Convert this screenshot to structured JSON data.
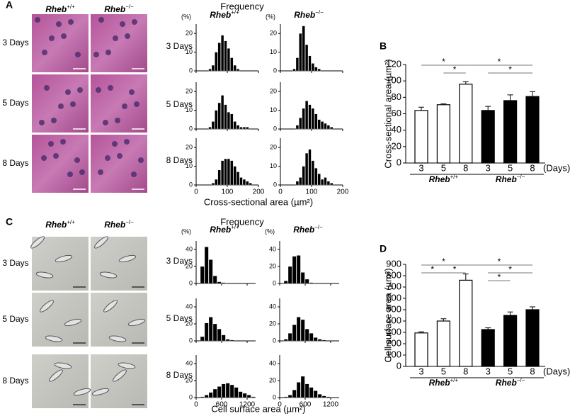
{
  "panel_labels": [
    "A",
    "B",
    "C",
    "D"
  ],
  "micrographs": [
    {
      "columns": [
        {
          "gene": "Rheb",
          "genotype": "+/+"
        },
        {
          "gene": "Rheb",
          "genotype": "−/−"
        }
      ],
      "rows": [
        "3 Days",
        "5 Days",
        "8 Days"
      ]
    },
    {
      "columns": [
        {
          "gene": "Rheb",
          "genotype": "+/+"
        },
        {
          "gene": "Rheb",
          "genotype": "−/−"
        }
      ],
      "rows": [
        "3 Days",
        "5 Days",
        "8 Days"
      ]
    }
  ],
  "chart_data": [
    {
      "type": "histogram",
      "title": "Frequency",
      "ylabel": "(%)",
      "xlabel": "Cross-sectional area (µm²)",
      "color": "#000000",
      "columns": [
        {
          "gene": "Rheb",
          "genotype": "+/+"
        },
        {
          "gene": "Rheb",
          "genotype": "−/−"
        }
      ],
      "rows": [
        "3 Days",
        "5 Days",
        "8 Days"
      ],
      "xlim": [
        0,
        200
      ],
      "xticks": [
        0,
        100,
        200
      ],
      "panels": [
        {
          "bins": [
            0,
            10,
            20,
            30,
            40,
            50,
            60,
            70,
            80,
            90,
            100,
            110,
            120,
            130,
            140,
            150,
            160,
            170,
            180,
            190,
            200
          ],
          "values": [
            0,
            0,
            0,
            0,
            1,
            3,
            10,
            15,
            19,
            16,
            12,
            7,
            3,
            1,
            0,
            0,
            0,
            0,
            0,
            0
          ],
          "ylim": [
            0,
            25
          ],
          "yticks": [
            0,
            10,
            20
          ]
        },
        {
          "bins": [
            0,
            10,
            20,
            30,
            40,
            50,
            60,
            70,
            80,
            90,
            100,
            110,
            120,
            130,
            140,
            150,
            160,
            170,
            180,
            190,
            200
          ],
          "values": [
            0,
            0,
            0,
            0,
            1,
            7,
            20,
            24,
            14,
            8,
            4,
            2,
            1,
            0,
            0,
            0,
            0,
            0,
            0,
            0
          ],
          "ylim": [
            0,
            25
          ],
          "yticks": [
            0,
            10,
            20
          ]
        },
        {
          "bins": [
            0,
            10,
            20,
            30,
            40,
            50,
            60,
            70,
            80,
            90,
            100,
            110,
            120,
            130,
            140,
            150,
            160,
            170,
            180,
            190,
            200
          ],
          "values": [
            0,
            0,
            0,
            0,
            1,
            4,
            10,
            14,
            18,
            13,
            9,
            8,
            4,
            2,
            1,
            1,
            1,
            0,
            0,
            0
          ],
          "ylim": [
            0,
            25
          ],
          "yticks": [
            0,
            10,
            20
          ]
        },
        {
          "bins": [
            0,
            10,
            20,
            30,
            40,
            50,
            60,
            70,
            80,
            90,
            100,
            110,
            120,
            130,
            140,
            150,
            160,
            170,
            180,
            190,
            200
          ],
          "values": [
            0,
            0,
            0,
            0,
            0,
            2,
            6,
            11,
            15,
            13,
            11,
            8,
            5,
            4,
            3,
            2,
            1,
            0,
            0,
            0
          ],
          "ylim": [
            0,
            25
          ],
          "yticks": [
            0,
            10,
            20
          ]
        },
        {
          "bins": [
            0,
            10,
            20,
            30,
            40,
            50,
            60,
            70,
            80,
            90,
            100,
            110,
            120,
            130,
            140,
            150,
            160,
            170,
            180,
            190,
            200
          ],
          "values": [
            0,
            0,
            0,
            0,
            0,
            1,
            3,
            8,
            13,
            14,
            14,
            13,
            10,
            7,
            4,
            3,
            2,
            1,
            0,
            0
          ],
          "ylim": [
            0,
            25
          ],
          "yticks": [
            0,
            10,
            20
          ]
        },
        {
          "bins": [
            0,
            10,
            20,
            30,
            40,
            50,
            60,
            70,
            80,
            90,
            100,
            110,
            120,
            130,
            140,
            150,
            160,
            170,
            180,
            190,
            200
          ],
          "values": [
            0,
            0,
            0,
            0,
            0,
            2,
            4,
            10,
            17,
            19,
            13,
            9,
            6,
            3,
            4,
            2,
            1,
            0,
            0,
            0
          ],
          "ylim": [
            0,
            25
          ],
          "yticks": [
            0,
            10,
            20
          ]
        }
      ]
    },
    {
      "type": "bar",
      "ylabel": "Cross-sectional area (µm²)",
      "ylim": [
        0,
        120
      ],
      "yticks": [
        0,
        20,
        40,
        60,
        80,
        100,
        120
      ],
      "categories": [
        "3",
        "5",
        "8",
        "3",
        "5",
        "8"
      ],
      "unit": "(Days)",
      "values": [
        64,
        71,
        96,
        64,
        76,
        81
      ],
      "errors": [
        4,
        1,
        3,
        5,
        7,
        6
      ],
      "colors": [
        "#ffffff",
        "#ffffff",
        "#ffffff",
        "#000000",
        "#000000",
        "#000000"
      ],
      "groups": [
        {
          "gene": "Rheb",
          "genotype": "+/+"
        },
        {
          "gene": "Rheb",
          "genotype": "−/−"
        }
      ],
      "significance": [
        "*",
        "*",
        "*",
        "*"
      ]
    },
    {
      "type": "histogram",
      "title": "Frequency",
      "ylabel": "(%)",
      "xlabel": "Cell surface area (µm²)",
      "color": "#000000",
      "columns": [
        {
          "gene": "Rheb",
          "genotype": "+/+"
        },
        {
          "gene": "Rheb",
          "genotype": "−/−"
        }
      ],
      "rows": [
        "3 Days",
        "5 Days",
        "8 Days"
      ],
      "xlim": [
        0,
        1400
      ],
      "xticks": [
        0,
        600,
        1200
      ],
      "panels": [
        {
          "bins": [
            0,
            100,
            200,
            300,
            400,
            500,
            600,
            700,
            800,
            900,
            1000,
            1100,
            1200,
            1300,
            1400
          ],
          "values": [
            0,
            20,
            43,
            28,
            9,
            2,
            1,
            0,
            0,
            0,
            0,
            0,
            0,
            0
          ],
          "ylim": [
            0,
            50
          ],
          "yticks": [
            0,
            20,
            40
          ]
        },
        {
          "bins": [
            0,
            100,
            200,
            300,
            400,
            500,
            600,
            700,
            800,
            900,
            1000,
            1100,
            1200,
            1300,
            1400
          ],
          "values": [
            0,
            3,
            20,
            32,
            33,
            13,
            5,
            1,
            0,
            0,
            0,
            0,
            0,
            0
          ],
          "ylim": [
            0,
            50
          ],
          "yticks": [
            0,
            20,
            40
          ]
        },
        {
          "bins": [
            0,
            100,
            200,
            300,
            400,
            500,
            600,
            700,
            800,
            900,
            1000,
            1100,
            1200,
            1300,
            1400
          ],
          "values": [
            0,
            5,
            21,
            28,
            20,
            14,
            7,
            2,
            1,
            0,
            0,
            0,
            0,
            0
          ],
          "ylim": [
            0,
            50
          ],
          "yticks": [
            0,
            20,
            40
          ]
        },
        {
          "bins": [
            0,
            100,
            200,
            300,
            400,
            500,
            600,
            700,
            800,
            900,
            1000,
            1100,
            1200,
            1300,
            1400
          ],
          "values": [
            0,
            2,
            9,
            19,
            28,
            25,
            14,
            9,
            4,
            2,
            1,
            0,
            0,
            0
          ],
          "ylim": [
            0,
            50
          ],
          "yticks": [
            0,
            20,
            40
          ]
        },
        {
          "bins": [
            0,
            100,
            200,
            300,
            400,
            500,
            600,
            700,
            800,
            900,
            1000,
            1100,
            1200,
            1300,
            1400
          ],
          "values": [
            0,
            1,
            3,
            6,
            10,
            13,
            16,
            17,
            15,
            12,
            7,
            5,
            3,
            1
          ],
          "ylim": [
            0,
            50
          ],
          "yticks": [
            0,
            20,
            40
          ]
        },
        {
          "bins": [
            0,
            100,
            200,
            300,
            400,
            500,
            600,
            700,
            800,
            900,
            1000,
            1100,
            1200,
            1300,
            1400
          ],
          "values": [
            0,
            1,
            3,
            9,
            18,
            25,
            16,
            12,
            8,
            4,
            2,
            1,
            0,
            0
          ],
          "ylim": [
            0,
            50
          ],
          "yticks": [
            0,
            20,
            40
          ]
        }
      ]
    },
    {
      "type": "bar",
      "ylabel": "Cell surface area (µm²)",
      "ylim": [
        0,
        900
      ],
      "yticks": [
        0,
        100,
        200,
        300,
        400,
        500,
        600,
        700,
        800,
        900
      ],
      "categories": [
        "3",
        "5",
        "8",
        "3",
        "5",
        "8"
      ],
      "unit": "(Days)",
      "values": [
        295,
        400,
        760,
        325,
        450,
        500
      ],
      "errors": [
        10,
        20,
        55,
        15,
        30,
        25
      ],
      "colors": [
        "#ffffff",
        "#ffffff",
        "#ffffff",
        "#000000",
        "#000000",
        "#000000"
      ],
      "groups": [
        {
          "gene": "Rheb",
          "genotype": "+/+"
        },
        {
          "gene": "Rheb",
          "genotype": "−/−"
        }
      ],
      "significance": [
        "*",
        "*",
        "*",
        "*",
        "*",
        "*"
      ]
    }
  ]
}
